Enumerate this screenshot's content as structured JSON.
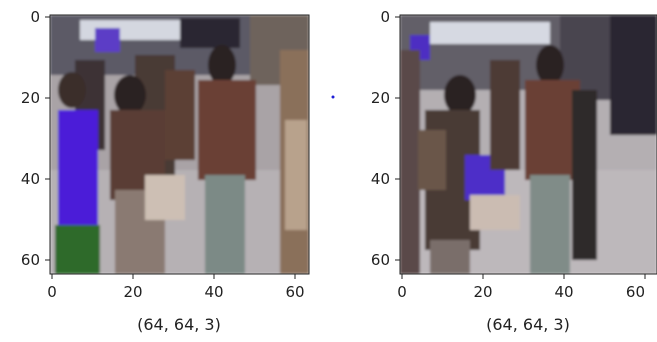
{
  "panels": [
    {
      "id": "left",
      "image_description": "low-resolution street scene, person with purple jacket on left, person in brown jacket and jeans on right, crowd behind",
      "x_ticks": [
        "0",
        "20",
        "40",
        "60"
      ],
      "y_ticks": [
        "0",
        "20",
        "40",
        "60"
      ],
      "caption": "(64, 64, 3)"
    },
    {
      "id": "right",
      "image_description": "low-resolution street scene, person with backpack in center-left, person in brown jacket and jeans on right, purple object held low",
      "x_ticks": [
        "0",
        "20",
        "40",
        "60"
      ],
      "y_ticks": [
        "0",
        "20",
        "40",
        "60"
      ],
      "caption": "(64, 64, 3)"
    }
  ],
  "colors": {
    "axis": "#222222",
    "marker_dot": "#1f1fd6"
  }
}
